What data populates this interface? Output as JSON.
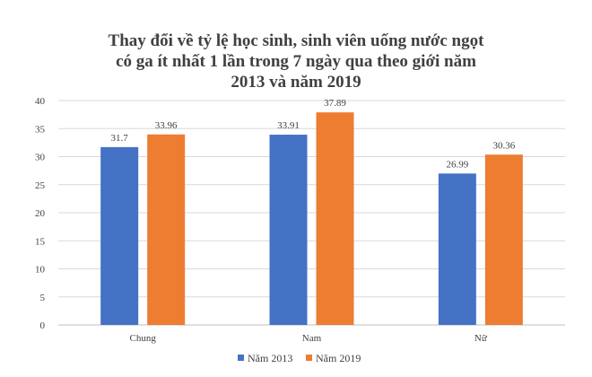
{
  "chart_data": {
    "type": "bar",
    "title_lines": [
      "Thay đổi về tỷ lệ học sinh, sinh viên uống nước ngọt",
      "có ga ít nhất 1 lần trong 7 ngày qua theo giới năm",
      "2013 và năm 2019"
    ],
    "categories": [
      "Chung",
      "Nam",
      "Nữ"
    ],
    "series": [
      {
        "name": "Năm 2013",
        "color": "#4472c4",
        "values": [
          31.7,
          33.91,
          26.99
        ],
        "labels": [
          "31.7",
          "33.91",
          "26.99"
        ]
      },
      {
        "name": "Năm 2019",
        "color": "#ed7d31",
        "values": [
          33.96,
          37.89,
          30.36
        ],
        "labels": [
          "33.96",
          "37.89",
          "30.36"
        ]
      }
    ],
    "ylim": [
      0,
      40
    ],
    "yticks": [
      "0",
      "5",
      "10",
      "15",
      "20",
      "25",
      "30",
      "35",
      "40"
    ],
    "grid": true,
    "legend_position": "bottom"
  }
}
